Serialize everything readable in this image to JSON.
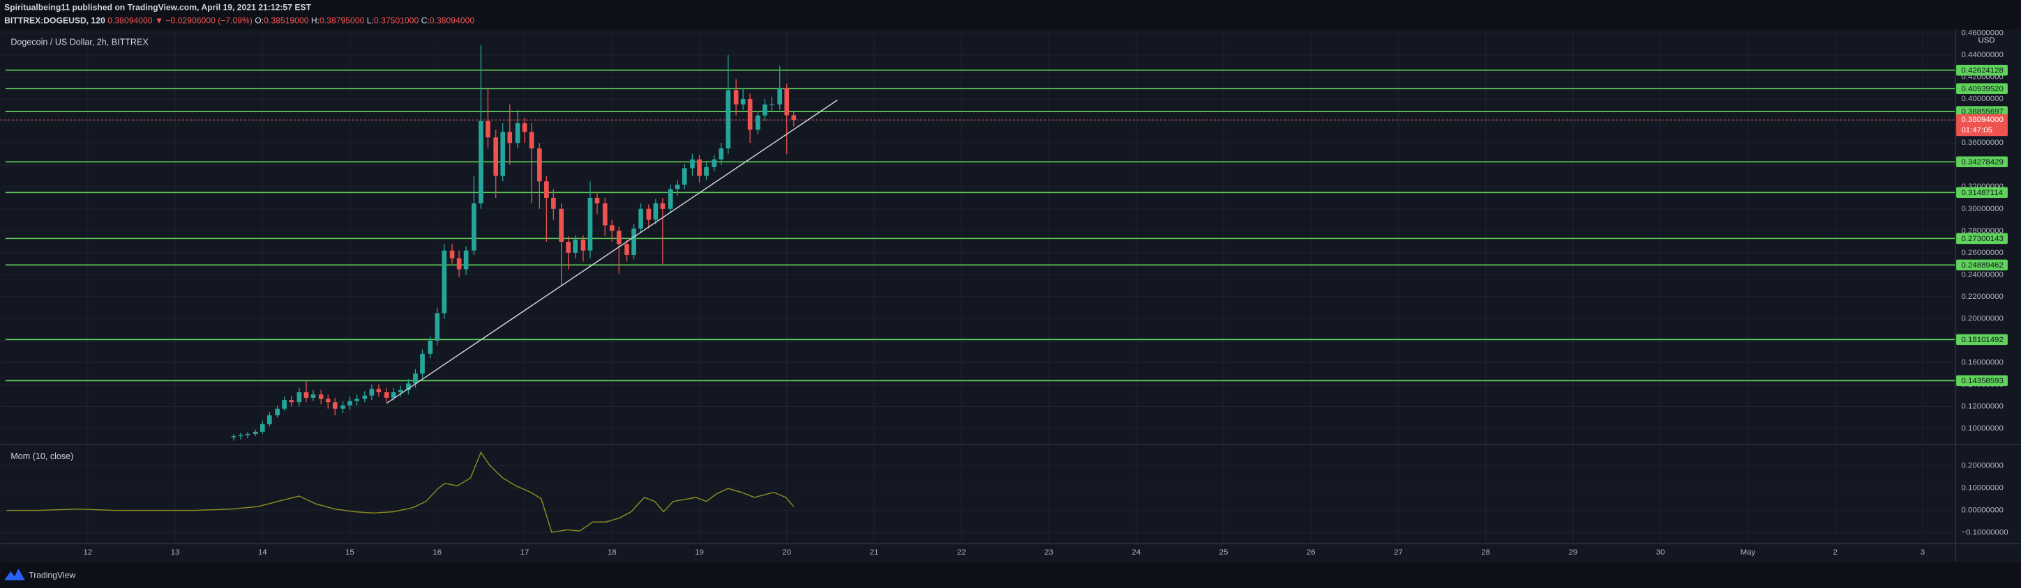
{
  "header": {
    "publisher": "Spiritualbeing11 published on TradingView.com, April 19, 2021 21:12:57 EST",
    "symbol": "BITTREX:DOGEUSD, 120",
    "last": "0.38094000",
    "change": "▼ −0.02906000 (−7.09%)",
    "ohlc": [
      {
        "label": "O:",
        "value": "0.38519000"
      },
      {
        "label": "H:",
        "value": "0.38795000"
      },
      {
        "label": "L:",
        "value": "0.37501000"
      },
      {
        "label": "C:",
        "value": "0.38094000"
      }
    ],
    "brand": "TradingView"
  },
  "chart_data": [
    {
      "type": "candlestick",
      "title": "Dogecoin / US Dollar, 2h, BITTREX",
      "y_axis_label": "USD",
      "up_color": "#26a69a",
      "down_color": "#ef5350",
      "grid": true,
      "xlim": [
        11.0,
        33.37
      ],
      "ylim": [
        0.086,
        0.462
      ],
      "yticks": [
        {
          "value": 0.1,
          "label": "0.10000000"
        },
        {
          "value": 0.12,
          "label": "0.12000000"
        },
        {
          "value": 0.14,
          "label": "0.14000000"
        },
        {
          "value": 0.16,
          "label": "0.16000000"
        },
        {
          "value": 0.18,
          "label": "0.18000000"
        },
        {
          "value": 0.2,
          "label": "0.20000000"
        },
        {
          "value": 0.22,
          "label": "0.22000000"
        },
        {
          "value": 0.24,
          "label": "0.24000000"
        },
        {
          "value": 0.26,
          "label": "0.26000000"
        },
        {
          "value": 0.28,
          "label": "0.28000000"
        },
        {
          "value": 0.3,
          "label": "0.30000000"
        },
        {
          "value": 0.32,
          "label": "0.32000000"
        },
        {
          "value": 0.34,
          "label": "0.34000000"
        },
        {
          "value": 0.36,
          "label": "0.36000000"
        },
        {
          "value": 0.38,
          "label": "0.38000000"
        },
        {
          "value": 0.4,
          "label": "0.40000000"
        },
        {
          "value": 0.42,
          "label": "0.42000000"
        },
        {
          "value": 0.44,
          "label": "0.44000000"
        },
        {
          "value": 0.46,
          "label": "0.46000000"
        }
      ],
      "x": [
        13.67,
        13.75,
        13.83,
        13.92,
        14,
        14.08,
        14.17,
        14.25,
        14.33,
        14.42,
        14.5,
        14.58,
        14.67,
        14.75,
        14.83,
        14.92,
        15,
        15.08,
        15.17,
        15.25,
        15.33,
        15.42,
        15.5,
        15.58,
        15.67,
        15.75,
        15.83,
        15.92,
        16,
        16.08,
        16.17,
        16.25,
        16.33,
        16.42,
        16.5,
        16.58,
        16.67,
        16.75,
        16.83,
        16.92,
        17,
        17.08,
        17.17,
        17.25,
        17.33,
        17.42,
        17.5,
        17.58,
        17.67,
        17.75,
        17.83,
        17.92,
        18,
        18.08,
        18.17,
        18.25,
        18.33,
        18.42,
        18.5,
        18.58,
        18.67,
        18.75,
        18.83,
        18.92,
        19,
        19.08,
        19.17,
        19.25,
        19.33,
        19.42,
        19.5,
        19.58,
        19.67,
        19.75,
        19.83,
        19.92,
        20,
        20.08
      ],
      "open": [
        0.092,
        0.093,
        0.094,
        0.095,
        0.097,
        0.104,
        0.112,
        0.118,
        0.126,
        0.124,
        0.133,
        0.128,
        0.131,
        0.127,
        0.124,
        0.118,
        0.121,
        0.125,
        0.127,
        0.13,
        0.136,
        0.133,
        0.128,
        0.133,
        0.135,
        0.141,
        0.15,
        0.168,
        0.18,
        0.205,
        0.262,
        0.255,
        0.245,
        0.262,
        0.305,
        0.38,
        0.365,
        0.33,
        0.37,
        0.36,
        0.378,
        0.37,
        0.355,
        0.325,
        0.31,
        0.3,
        0.27,
        0.26,
        0.272,
        0.262,
        0.31,
        0.305,
        0.285,
        0.28,
        0.268,
        0.258,
        0.282,
        0.3,
        0.29,
        0.305,
        0.3,
        0.318,
        0.322,
        0.337,
        0.345,
        0.33,
        0.338,
        0.345,
        0.355,
        0.408,
        0.395,
        0.4,
        0.372,
        0.385,
        0.395,
        0.395,
        0.41,
        0.38519
      ],
      "high": [
        0.095,
        0.096,
        0.097,
        0.099,
        0.107,
        0.115,
        0.121,
        0.129,
        0.13,
        0.137,
        0.143,
        0.135,
        0.135,
        0.131,
        0.128,
        0.125,
        0.129,
        0.131,
        0.134,
        0.14,
        0.14,
        0.137,
        0.137,
        0.139,
        0.145,
        0.154,
        0.172,
        0.184,
        0.21,
        0.268,
        0.268,
        0.262,
        0.266,
        0.33,
        0.449,
        0.41,
        0.372,
        0.378,
        0.395,
        0.39,
        0.383,
        0.378,
        0.36,
        0.33,
        0.318,
        0.305,
        0.275,
        0.276,
        0.276,
        0.325,
        0.315,
        0.31,
        0.29,
        0.284,
        0.272,
        0.286,
        0.305,
        0.304,
        0.309,
        0.31,
        0.322,
        0.326,
        0.341,
        0.35,
        0.349,
        0.342,
        0.349,
        0.36,
        0.44,
        0.418,
        0.41,
        0.405,
        0.389,
        0.4,
        0.402,
        0.43,
        0.414,
        0.38795
      ],
      "low": [
        0.089,
        0.09,
        0.091,
        0.093,
        0.095,
        0.102,
        0.11,
        0.116,
        0.12,
        0.12,
        0.124,
        0.125,
        0.122,
        0.118,
        0.112,
        0.114,
        0.117,
        0.121,
        0.124,
        0.126,
        0.129,
        0.124,
        0.125,
        0.129,
        0.131,
        0.137,
        0.146,
        0.164,
        0.176,
        0.2,
        0.25,
        0.238,
        0.24,
        0.258,
        0.3,
        0.355,
        0.31,
        0.325,
        0.34,
        0.355,
        0.36,
        0.305,
        0.3,
        0.27,
        0.29,
        0.23,
        0.245,
        0.255,
        0.252,
        0.255,
        0.295,
        0.275,
        0.27,
        0.241,
        0.252,
        0.254,
        0.278,
        0.282,
        0.286,
        0.25,
        0.296,
        0.312,
        0.318,
        0.33,
        0.324,
        0.326,
        0.334,
        0.34,
        0.35,
        0.385,
        0.39,
        0.36,
        0.368,
        0.38,
        0.388,
        0.39,
        0.35,
        0.37501
      ],
      "close": [
        0.093,
        0.094,
        0.095,
        0.097,
        0.104,
        0.112,
        0.118,
        0.126,
        0.124,
        0.133,
        0.128,
        0.131,
        0.127,
        0.124,
        0.118,
        0.121,
        0.125,
        0.127,
        0.13,
        0.136,
        0.133,
        0.128,
        0.133,
        0.135,
        0.141,
        0.15,
        0.168,
        0.18,
        0.205,
        0.262,
        0.255,
        0.245,
        0.262,
        0.305,
        0.38,
        0.365,
        0.33,
        0.37,
        0.36,
        0.378,
        0.37,
        0.355,
        0.325,
        0.31,
        0.3,
        0.27,
        0.26,
        0.272,
        0.262,
        0.31,
        0.305,
        0.285,
        0.28,
        0.268,
        0.258,
        0.282,
        0.3,
        0.29,
        0.305,
        0.3,
        0.318,
        0.322,
        0.337,
        0.345,
        0.33,
        0.338,
        0.345,
        0.355,
        0.408,
        0.395,
        0.4,
        0.372,
        0.385,
        0.395,
        0.395,
        0.41,
        0.38519,
        0.38094
      ],
      "levels": {
        "color": "#5fd35a",
        "values": [
          0.42624128,
          0.4093952,
          0.38855697,
          0.34278429,
          0.31487114,
          0.27300143,
          0.24889462,
          0.18101492,
          0.14358593
        ],
        "value_labels": [
          "0.42624128",
          "0.40939520",
          "0.38855697",
          "0.34278429",
          "0.31487114",
          "0.27300143",
          "0.24889462",
          "0.18101492",
          "0.14358593"
        ]
      },
      "last_price": {
        "color": "#ef5350",
        "values": [
          0.38094
        ],
        "value_labels": [
          "0.38094000"
        ],
        "countdown": "01:47:05"
      },
      "trendline": {
        "color": "#d1d4dc",
        "x": [
          15.42,
          20.58
        ],
        "y": [
          0.123,
          0.399
        ]
      }
    },
    {
      "type": "line",
      "title": "Mom (10, close)",
      "color": "#8a8a22",
      "grid": true,
      "xlim": [
        11.0,
        33.37
      ],
      "ylim": [
        -0.146,
        0.292
      ],
      "yticks": [
        {
          "value": -0.1,
          "label": "−0.10000000"
        },
        {
          "value": 0,
          "label": "0.00000000"
        },
        {
          "value": 0.1,
          "label": "0.10000000"
        },
        {
          "value": 0.2,
          "label": "0.20000000"
        }
      ],
      "xticks": [
        12,
        13,
        14,
        15,
        16,
        17,
        18,
        19,
        20,
        21,
        22,
        23,
        24,
        25,
        26,
        27,
        28,
        29,
        30,
        {
          "value": 31,
          "label": "May"
        },
        {
          "value": 32,
          "label": "2"
        },
        {
          "value": 33,
          "label": "3"
        }
      ],
      "x": [
        11.07,
        11.44,
        11.88,
        12.32,
        12.77,
        13.21,
        13.65,
        13.95,
        14.17,
        14.42,
        14.61,
        14.83,
        15.05,
        15.27,
        15.5,
        15.72,
        15.87,
        16.01,
        16.09,
        16.23,
        16.38,
        16.5,
        16.6,
        16.75,
        16.9,
        17.07,
        17.19,
        17.31,
        17.49,
        17.63,
        17.78,
        17.93,
        18.08,
        18.22,
        18.37,
        18.49,
        18.59,
        18.7,
        18.96,
        19.08,
        19.2,
        19.33,
        19.48,
        19.63,
        19.85,
        19.99,
        20.08
      ],
      "values": [
        0,
        0,
        0.006,
        0,
        0,
        0,
        0.006,
        0.017,
        0.04,
        0.064,
        0.029,
        0.006,
        -0.006,
        -0.012,
        -0.006,
        0.012,
        0.04,
        0.098,
        0.121,
        0.11,
        0.145,
        0.26,
        0.202,
        0.145,
        0.11,
        0.081,
        0.052,
        -0.098,
        -0.087,
        -0.092,
        -0.052,
        -0.052,
        -0.035,
        -0.006,
        0.058,
        0.04,
        -0.006,
        0.04,
        0.058,
        0.04,
        0.075,
        0.098,
        0.081,
        0.058,
        0.081,
        0.058,
        0.017
      ]
    }
  ]
}
